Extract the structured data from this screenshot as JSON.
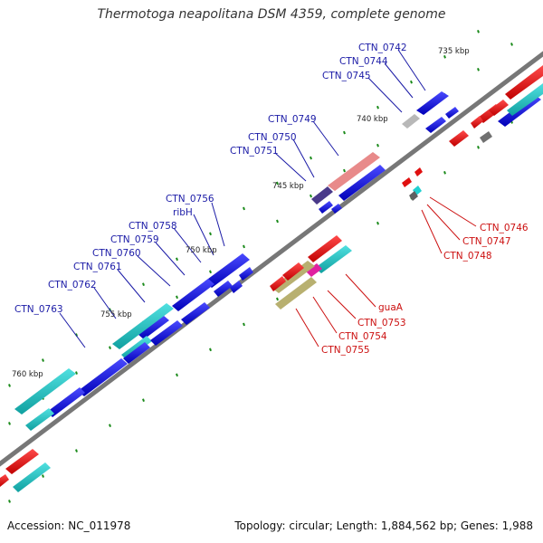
{
  "title": "Thermotoga neapolitana DSM 4359, complete genome",
  "footer": {
    "accession": "Accession: NC_011978",
    "summary": "Topology: circular; Length: 1,884,562 bp; Genes: 1,988"
  },
  "colors": {
    "backbone": "#777777",
    "forward_gene": "#1010e0",
    "reverse_gene": "#e01010",
    "rna_gene": "#20c0c0",
    "other_gene": "#808080",
    "forward_label": "#1a1aa6",
    "reverse_label": "#cc1010",
    "tick": "#1a8a1a"
  },
  "ticks": [
    {
      "label": "735 kbp"
    },
    {
      "label": "740 kbp"
    },
    {
      "label": "745 kbp"
    },
    {
      "label": "750 kbp"
    },
    {
      "label": "755 kbp"
    },
    {
      "label": "760 kbp"
    }
  ],
  "forward_labels": [
    {
      "text": "CTN_0742"
    },
    {
      "text": "CTN_0744"
    },
    {
      "text": "CTN_0745"
    },
    {
      "text": "CTN_0749"
    },
    {
      "text": "CTN_0750"
    },
    {
      "text": "CTN_0751"
    },
    {
      "text": "CTN_0756"
    },
    {
      "text": "ribH"
    },
    {
      "text": "CTN_0758"
    },
    {
      "text": "CTN_0759"
    },
    {
      "text": "CTN_0760"
    },
    {
      "text": "CTN_0761"
    },
    {
      "text": "CTN_0762"
    },
    {
      "text": "CTN_0763"
    }
  ],
  "reverse_labels": [
    {
      "text": "CTN_0746"
    },
    {
      "text": "CTN_0747"
    },
    {
      "text": "CTN_0748"
    },
    {
      "text": "guaA"
    },
    {
      "text": "CTN_0753"
    },
    {
      "text": "CTN_0754"
    },
    {
      "text": "CTN_0755"
    }
  ]
}
